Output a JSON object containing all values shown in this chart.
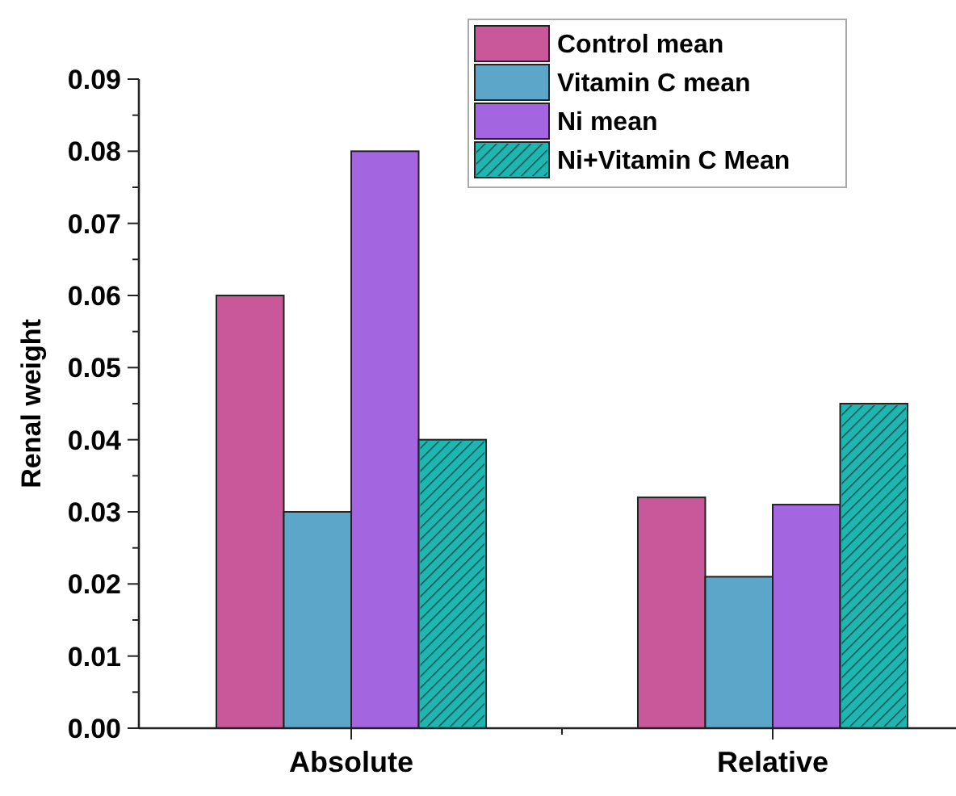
{
  "chart_data": {
    "type": "bar",
    "ylabel": "Renal weight",
    "categories": [
      "Absolute",
      "Relative"
    ],
    "series": [
      {
        "name": "Control mean",
        "color": "#c8589a",
        "values": [
          0.06,
          0.032
        ]
      },
      {
        "name": "Vitamin C mean",
        "color": "#5ba6c9",
        "values": [
          0.03,
          0.021
        ]
      },
      {
        "name": "Ni mean",
        "color": "#a366e0",
        "values": [
          0.08,
          0.031
        ]
      },
      {
        "name": "Ni+Vitamin C Mean",
        "color": "#1fb5b0",
        "values": [
          0.04,
          0.045
        ]
      }
    ],
    "ylim": [
      0,
      0.09
    ],
    "yticks": [
      {
        "value": 0,
        "label": "0.00"
      },
      {
        "value": 0.005,
        "label": null
      },
      {
        "value": 0.01,
        "label": "0.01"
      },
      {
        "value": 0.015,
        "label": null
      },
      {
        "value": 0.02,
        "label": "0.02"
      },
      {
        "value": 0.025,
        "label": null
      },
      {
        "value": 0.03,
        "label": "0.03"
      },
      {
        "value": 0.035,
        "label": null
      },
      {
        "value": 0.04,
        "label": "0.04"
      },
      {
        "value": 0.045,
        "label": null
      },
      {
        "value": 0.05,
        "label": "0.05"
      },
      {
        "value": 0.055,
        "label": null
      },
      {
        "value": 0.06,
        "label": "0.06"
      },
      {
        "value": 0.065,
        "label": null
      },
      {
        "value": 0.07,
        "label": "0.07"
      },
      {
        "value": 0.075,
        "label": null
      },
      {
        "value": 0.08,
        "label": "0.08"
      },
      {
        "value": 0.085,
        "label": null
      },
      {
        "value": 0.09,
        "label": "0.09"
      }
    ],
    "grid": false,
    "legend": "top right"
  }
}
